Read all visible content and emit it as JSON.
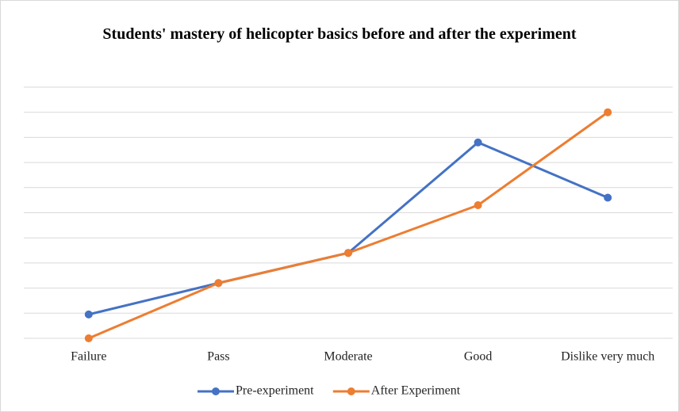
{
  "chart_data": {
    "type": "line",
    "title": "Students' mastery of helicopter basics before and after the experiment",
    "categories": [
      "Failure",
      "Pass",
      "Moderate",
      "Good",
      "Dislike very much"
    ],
    "series": [
      {
        "name": "Pre-experiment",
        "color": "#4472c4",
        "values": [
          0.95,
          2.2,
          3.4,
          7.8,
          5.6
        ]
      },
      {
        "name": "After Experiment",
        "color": "#ed7d31",
        "values": [
          0,
          2.2,
          3.4,
          5.3,
          9.0
        ]
      }
    ],
    "ylim": [
      0,
      10
    ],
    "yticks": [
      0,
      1,
      2,
      3,
      4,
      5,
      6,
      7,
      8,
      9,
      10
    ],
    "grid": true,
    "legend": "bottom"
  }
}
